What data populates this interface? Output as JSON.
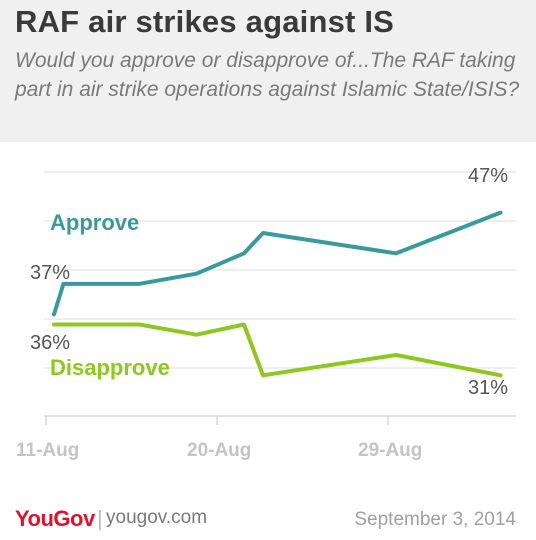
{
  "header": {
    "title": "RAF air strikes against IS",
    "subtitle": "Would you approve or disapprove of...The RAF taking part in air strike operations against Islamic State/ISIS?"
  },
  "chart_data": {
    "type": "line",
    "x_ticks": [
      "11-Aug",
      "20-Aug",
      "29-Aug"
    ],
    "x_tick_days": [
      0,
      9,
      18
    ],
    "ylim": [
      27,
      51
    ],
    "grid": true,
    "series": [
      {
        "name": "Approve",
        "color": "#3a9a9b",
        "x": [
          0,
          0.5,
          4.5,
          7.5,
          10,
          11,
          18,
          23.5
        ],
        "values": [
          37,
          40,
          40,
          41,
          43,
          45,
          43,
          47
        ],
        "start_label": "37%",
        "end_label": "47%"
      },
      {
        "name": "Disapprove",
        "color": "#8cc81e",
        "x": [
          0,
          0.5,
          4.5,
          7.5,
          10,
          11,
          18,
          23.5
        ],
        "values": [
          36,
          36,
          36,
          35,
          36,
          31,
          33,
          31
        ],
        "start_label": "36%",
        "end_label": "31%"
      }
    ]
  },
  "footer": {
    "brand": "YouGov",
    "separator": "|",
    "site": "yougov.com",
    "date": "September 3, 2014"
  }
}
